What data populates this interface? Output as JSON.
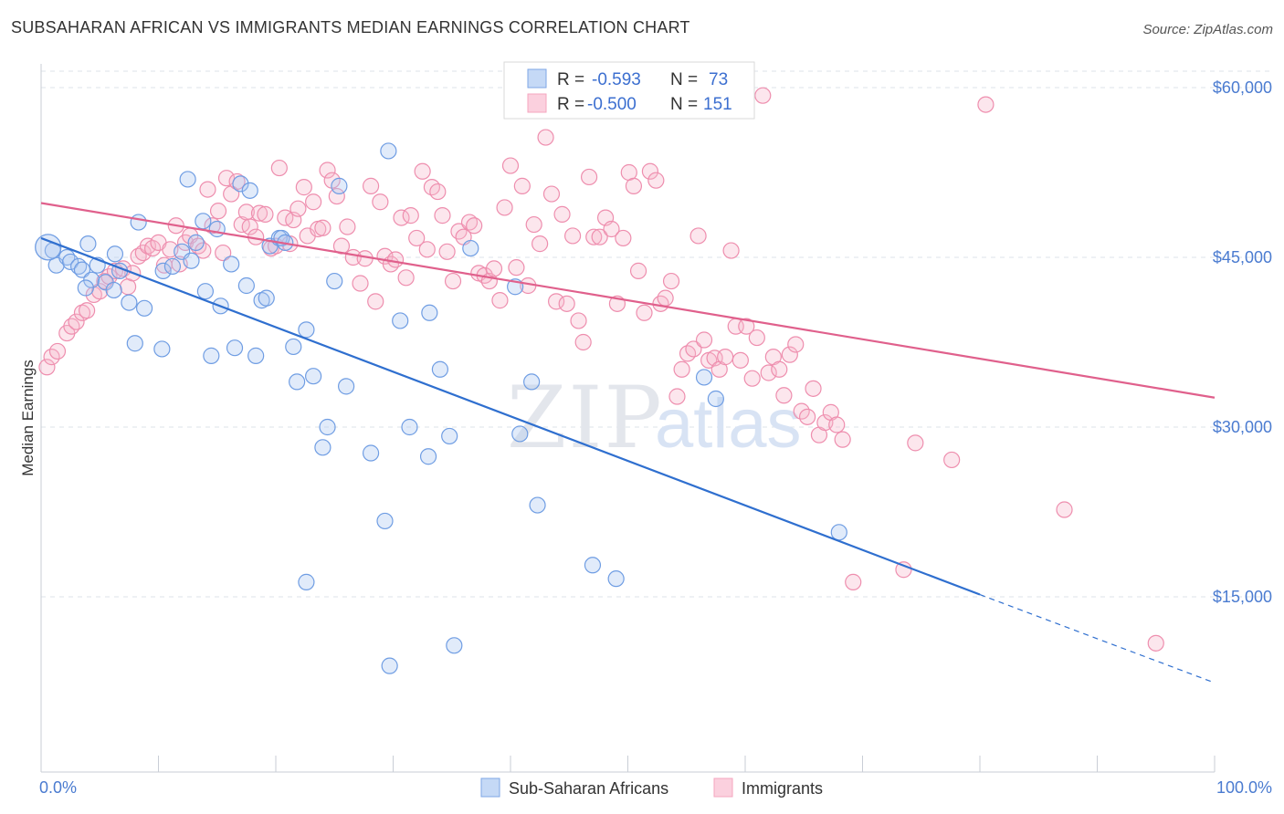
{
  "title": "SUBSAHARAN AFRICAN VS IMMIGRANTS MEDIAN EARNINGS CORRELATION CHART",
  "source": "Source: ZipAtlas.com",
  "watermark": {
    "zip": "ZIP",
    "atlas": "atlas"
  },
  "legend_top": {
    "r_label": "R =",
    "n_label": "N =",
    "rows": [
      {
        "r": "-0.593",
        "n": "73"
      },
      {
        "r": "-0.500",
        "n": "151"
      }
    ]
  },
  "legend_bottom": [
    "Sub-Saharan Africans",
    "Immigrants"
  ],
  "chart_data": {
    "type": "scatter",
    "title": "SUBSAHARAN AFRICAN VS IMMIGRANTS MEDIAN EARNINGS CORRELATION CHART",
    "xlabel": "",
    "ylabel": "Median Earnings",
    "x_tick_labels": [
      "0.0%",
      "100.0%"
    ],
    "y_tick_labels": [
      "$15,000",
      "$30,000",
      "$45,000",
      "$60,000"
    ],
    "y_ticks": [
      15000,
      30000,
      45000,
      60000
    ],
    "xlim": [
      0,
      100
    ],
    "ylim": [
      0,
      62000
    ],
    "grid": true,
    "legend_position": "top-center",
    "colors": {
      "blue": "#7ea6e6",
      "blue_line": "#2f6fcf",
      "pink": "#f4a6bf",
      "pink_line": "#e0608c",
      "tick": "#4a7bd0"
    },
    "series": [
      {
        "name": "Sub-Saharan Africans",
        "r": -0.593,
        "n": 73,
        "trend": {
          "x0": 0,
          "y0": 46700,
          "x1": 80,
          "y1": 15200,
          "dash_to_x": 100,
          "dash_to_y": 7400
        },
        "points": [
          [
            1,
            45600
          ],
          [
            1.3,
            44300
          ],
          [
            2.2,
            45000
          ],
          [
            2.5,
            44600
          ],
          [
            3.2,
            44200
          ],
          [
            3.5,
            43900
          ],
          [
            4,
            46200
          ],
          [
            4.3,
            43000
          ],
          [
            4.8,
            44300
          ],
          [
            5.5,
            42800
          ],
          [
            6.2,
            42100
          ],
          [
            6.7,
            43800
          ],
          [
            7.5,
            41000
          ],
          [
            8,
            37400
          ],
          [
            8.8,
            40500
          ],
          [
            8.3,
            48100
          ],
          [
            10.3,
            36900
          ],
          [
            10.4,
            43800
          ],
          [
            11.2,
            44200
          ],
          [
            12,
            45500
          ],
          [
            12.5,
            51900
          ],
          [
            12.8,
            44700
          ],
          [
            13.2,
            46300
          ],
          [
            13.8,
            48200
          ],
          [
            14,
            42000
          ],
          [
            14.5,
            36300
          ],
          [
            15,
            47500
          ],
          [
            15.3,
            40700
          ],
          [
            16.2,
            44400
          ],
          [
            16.5,
            37000
          ],
          [
            17,
            51500
          ],
          [
            17.5,
            42500
          ],
          [
            17.8,
            50900
          ],
          [
            18.3,
            36300
          ],
          [
            18.8,
            41200
          ],
          [
            19.2,
            41400
          ],
          [
            19.5,
            46000
          ],
          [
            20.3,
            46700
          ],
          [
            20.5,
            46700
          ],
          [
            20.8,
            46300
          ],
          [
            21.5,
            37100
          ],
          [
            21.8,
            34000
          ],
          [
            22.6,
            38600
          ],
          [
            23.2,
            34500
          ],
          [
            24,
            28200
          ],
          [
            24.4,
            30000
          ],
          [
            25,
            42900
          ],
          [
            25.4,
            51300
          ],
          [
            26,
            33600
          ],
          [
            28.1,
            27700
          ],
          [
            29.3,
            21700
          ],
          [
            29.6,
            54400
          ],
          [
            29.7,
            8900
          ],
          [
            30.6,
            39400
          ],
          [
            31.4,
            30000
          ],
          [
            33,
            27400
          ],
          [
            33.1,
            40100
          ],
          [
            34,
            35100
          ],
          [
            34.8,
            29200
          ],
          [
            35.2,
            10700
          ],
          [
            36.6,
            45800
          ],
          [
            40.4,
            42400
          ],
          [
            40.8,
            29400
          ],
          [
            41.8,
            34000
          ],
          [
            42.3,
            23100
          ],
          [
            47,
            17800
          ],
          [
            49,
            16600
          ],
          [
            56.5,
            34400
          ],
          [
            57.5,
            32500
          ],
          [
            68,
            20700
          ],
          [
            22.6,
            16300
          ],
          [
            3.8,
            42300
          ],
          [
            6.3,
            45300
          ]
        ]
      },
      {
        "name": "Immigrants",
        "r": -0.5,
        "n": 151,
        "trend": {
          "x0": 0,
          "y0": 49800,
          "x1": 100,
          "y1": 32600
        },
        "points": [
          [
            0.5,
            35300
          ],
          [
            0.9,
            36200
          ],
          [
            1.4,
            36700
          ],
          [
            2.2,
            38300
          ],
          [
            2.6,
            38900
          ],
          [
            3,
            39300
          ],
          [
            3.5,
            40100
          ],
          [
            3.9,
            40300
          ],
          [
            4.5,
            41700
          ],
          [
            5,
            42000
          ],
          [
            5.4,
            42900
          ],
          [
            5.8,
            43300
          ],
          [
            6.3,
            43800
          ],
          [
            7,
            44000
          ],
          [
            7.4,
            42400
          ],
          [
            7.8,
            43600
          ],
          [
            8.3,
            45100
          ],
          [
            8.7,
            45400
          ],
          [
            9.1,
            46000
          ],
          [
            9.5,
            45800
          ],
          [
            10,
            46300
          ],
          [
            10.5,
            44300
          ],
          [
            11,
            45700
          ],
          [
            11.5,
            47800
          ],
          [
            11.8,
            44400
          ],
          [
            12.3,
            46300
          ],
          [
            12.7,
            46900
          ],
          [
            13.4,
            46000
          ],
          [
            13.8,
            45600
          ],
          [
            14.2,
            51000
          ],
          [
            14.6,
            47800
          ],
          [
            15.1,
            49100
          ],
          [
            15.5,
            45400
          ],
          [
            15.8,
            52000
          ],
          [
            16.2,
            50600
          ],
          [
            16.7,
            51700
          ],
          [
            17.1,
            47900
          ],
          [
            17.5,
            49000
          ],
          [
            17.8,
            47700
          ],
          [
            18.3,
            46800
          ],
          [
            18.6,
            48900
          ],
          [
            19.1,
            48800
          ],
          [
            19.6,
            45800
          ],
          [
            20,
            46000
          ],
          [
            20.3,
            52900
          ],
          [
            20.8,
            48500
          ],
          [
            21.2,
            46200
          ],
          [
            21.5,
            48300
          ],
          [
            21.9,
            49300
          ],
          [
            22.4,
            51200
          ],
          [
            22.7,
            46900
          ],
          [
            23.2,
            49900
          ],
          [
            23.6,
            47500
          ],
          [
            24,
            47600
          ],
          [
            24.4,
            52700
          ],
          [
            24.8,
            51800
          ],
          [
            25.2,
            50400
          ],
          [
            25.6,
            46000
          ],
          [
            26.1,
            47700
          ],
          [
            26.6,
            45000
          ],
          [
            27.2,
            42700
          ],
          [
            27.6,
            44900
          ],
          [
            28.1,
            51300
          ],
          [
            28.5,
            41100
          ],
          [
            28.9,
            49900
          ],
          [
            29.3,
            45100
          ],
          [
            29.8,
            44400
          ],
          [
            30.2,
            44800
          ],
          [
            30.7,
            48500
          ],
          [
            31.1,
            43200
          ],
          [
            31.5,
            48700
          ],
          [
            32,
            46700
          ],
          [
            32.5,
            52600
          ],
          [
            32.9,
            45700
          ],
          [
            33.3,
            51200
          ],
          [
            33.8,
            50800
          ],
          [
            34.2,
            48700
          ],
          [
            34.6,
            45500
          ],
          [
            35.1,
            42900
          ],
          [
            35.6,
            47300
          ],
          [
            36,
            46800
          ],
          [
            36.5,
            48100
          ],
          [
            36.9,
            47800
          ],
          [
            37.3,
            43600
          ],
          [
            37.8,
            43400
          ],
          [
            38.2,
            42900
          ],
          [
            38.6,
            44000
          ],
          [
            39.1,
            41200
          ],
          [
            39.5,
            49400
          ],
          [
            40,
            53100
          ],
          [
            40.5,
            44100
          ],
          [
            41,
            51300
          ],
          [
            41.5,
            42500
          ],
          [
            42,
            47900
          ],
          [
            42.5,
            46200
          ],
          [
            43,
            55600
          ],
          [
            43.5,
            50600
          ],
          [
            43.9,
            41100
          ],
          [
            44.4,
            48800
          ],
          [
            44.8,
            40900
          ],
          [
            45.3,
            46900
          ],
          [
            45.8,
            39400
          ],
          [
            46.2,
            37500
          ],
          [
            46.7,
            52100
          ],
          [
            47.1,
            46800
          ],
          [
            47.6,
            46800
          ],
          [
            48.1,
            48500
          ],
          [
            48.6,
            47500
          ],
          [
            49.1,
            40900
          ],
          [
            49.6,
            46700
          ],
          [
            50.1,
            52500
          ],
          [
            50.5,
            51300
          ],
          [
            50.9,
            43800
          ],
          [
            51.4,
            40100
          ],
          [
            51.9,
            52600
          ],
          [
            52.4,
            51800
          ],
          [
            52.8,
            40900
          ],
          [
            53.2,
            41400
          ],
          [
            53.7,
            42900
          ],
          [
            54.2,
            32700
          ],
          [
            54.6,
            35100
          ],
          [
            55.1,
            36500
          ],
          [
            55.6,
            36900
          ],
          [
            56,
            46900
          ],
          [
            56.5,
            37700
          ],
          [
            56.9,
            35900
          ],
          [
            57.4,
            36100
          ],
          [
            57.8,
            35100
          ],
          [
            58.3,
            36200
          ],
          [
            58.8,
            45600
          ],
          [
            59.2,
            38900
          ],
          [
            59.6,
            35900
          ],
          [
            60.1,
            38900
          ],
          [
            60.6,
            34300
          ],
          [
            61,
            37900
          ],
          [
            61.5,
            59300
          ],
          [
            62,
            34800
          ],
          [
            62.4,
            36200
          ],
          [
            62.9,
            35100
          ],
          [
            63.3,
            32800
          ],
          [
            63.8,
            36400
          ],
          [
            64.3,
            37300
          ],
          [
            64.8,
            31400
          ],
          [
            65.3,
            30900
          ],
          [
            65.8,
            33400
          ],
          [
            66.3,
            29300
          ],
          [
            66.8,
            30400
          ],
          [
            67.3,
            31300
          ],
          [
            67.8,
            30200
          ],
          [
            68.3,
            28900
          ],
          [
            69.2,
            16300
          ],
          [
            73.5,
            17400
          ]
        ]
      },
      {
        "name": "",
        "points": [
          [
            74.5,
            28600
          ],
          [
            77.6,
            27100
          ],
          [
            80.5,
            58500
          ],
          [
            87.2,
            22700
          ],
          [
            95,
            10900
          ]
        ]
      }
    ]
  }
}
